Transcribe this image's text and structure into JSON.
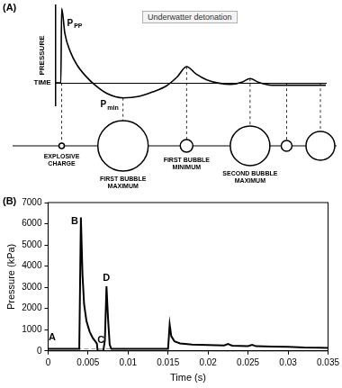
{
  "chart_data": [
    {
      "panel": "(A)",
      "type": "line",
      "title": "Underwatter detonation",
      "x_label": "TIME",
      "y_label": "PRESSURE",
      "x": [
        0,
        0.2,
        0.23,
        0.35,
        0.55,
        0.8,
        1.1,
        1.5,
        1.9,
        2.5,
        3.1,
        3.6,
        4.1,
        4.5,
        4.85,
        5.2,
        5.6,
        6.0,
        6.5,
        6.9,
        7.2,
        7.5,
        8.0,
        10
      ],
      "values": [
        0,
        0,
        5,
        3.3,
        2.1,
        1.2,
        0.5,
        -0.2,
        -0.7,
        -1.0,
        -0.9,
        -0.6,
        -0.2,
        0.4,
        1.1,
        0.6,
        0.2,
        0,
        -0.1,
        0.05,
        0.3,
        0.05,
        -0.15,
        -0.15
      ],
      "color": "#000000",
      "xlim": [
        0,
        10
      ],
      "ylim": [
        -1.5,
        5.2
      ],
      "tick_labels": false,
      "grid": false,
      "annotations": [
        {
          "text": {
            "base": "P",
            "sub": "PP"
          },
          "x": 0.23,
          "y": 4
        },
        {
          "text": {
            "base": "P",
            "sub": "min"
          },
          "x": 2.5,
          "y": -1.0
        }
      ],
      "bubbles": {
        "x": [
          0.23,
          2.5,
          4.85,
          7.2,
          8.55,
          9.8
        ],
        "size": [
          3,
          28,
          7,
          22,
          6,
          16
        ],
        "labels": [
          "EXPLOSIVE CHARGE",
          "FIRST BUBBLE MAXIMUM",
          "FIRST BUBBLE MINIMUM",
          "SECOND BUBBLE MAXIMUM",
          null,
          null
        ]
      }
    },
    {
      "panel": "(B)",
      "type": "line",
      "x_label": "Time (s)",
      "y_label": "Pressure (kPa)",
      "xlim": [
        0,
        0.035
      ],
      "xticks": [
        0,
        0.005,
        0.01,
        0.015,
        0.02,
        0.025,
        0.03,
        0.035
      ],
      "ylim": [
        0,
        7000
      ],
      "yticks": [
        0,
        1000,
        2000,
        3000,
        4000,
        5000,
        6000,
        7000
      ],
      "grid": false,
      "series": [
        {
          "color": "#000000",
          "x": [
            0,
            0.0039,
            0.0041,
            0.0043,
            0.0045,
            0.0048,
            0.0052,
            0.0056,
            0.0059,
            0.0061,
            0.0062,
            0.0069,
            0.0071,
            0.0073,
            0.0075,
            0.0077,
            0.0079,
            0.015,
            0.0152,
            0.0154,
            0.0158,
            0.0165,
            0.018,
            0.02,
            0.022,
            0.0225,
            0.023,
            0.025,
            0.0255,
            0.026,
            0.028,
            0.03,
            0.032,
            0.034,
            0.035
          ],
          "values": [
            100,
            100,
            6300,
            3600,
            2200,
            1400,
            900,
            600,
            450,
            350,
            0,
            0,
            500,
            3050,
            1500,
            300,
            100,
            100,
            1250,
            700,
            450,
            350,
            300,
            280,
            260,
            330,
            250,
            230,
            290,
            220,
            200,
            190,
            160,
            150,
            140
          ]
        },
        {
          "color": "#999999",
          "line_style": "dashed",
          "x": [
            0,
            0.0115
          ],
          "values": [
            100,
            100
          ]
        }
      ],
      "annotations": [
        {
          "text": "A",
          "x": 0.0005,
          "y": 100
        },
        {
          "text": "B",
          "x": 0.0041,
          "y": 6300
        },
        {
          "text": "C",
          "x": 0.0065,
          "y": 0
        },
        {
          "text": "D",
          "x": 0.0073,
          "y": 3050
        }
      ]
    }
  ]
}
